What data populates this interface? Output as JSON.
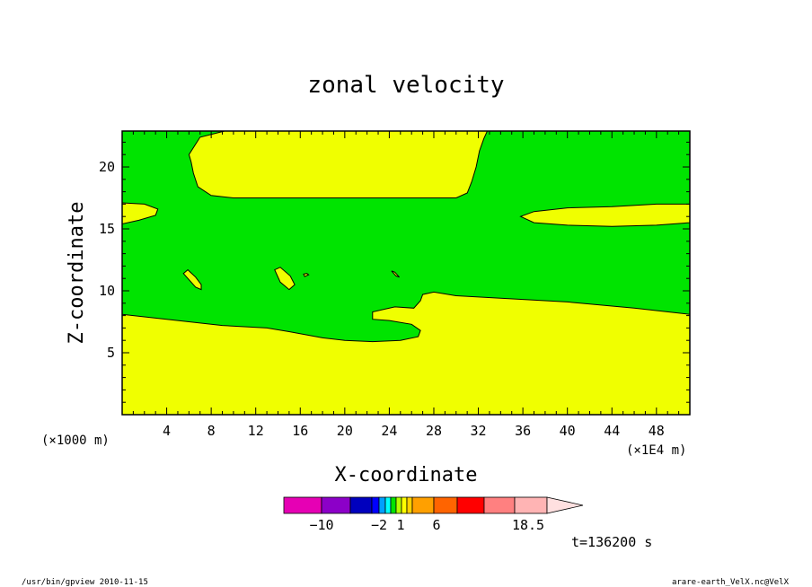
{
  "chart_data": {
    "type": "heatmap",
    "title": "zonal velocity",
    "xlabel": "X-coordinate",
    "ylabel": "Z-coordinate",
    "x_unit_left": "(×1000 m)",
    "x_unit_right": "(×1E4 m)",
    "xlim": [
      0,
      51
    ],
    "ylim": [
      0,
      22.9
    ],
    "x_ticks": [
      4,
      8,
      12,
      16,
      20,
      24,
      28,
      32,
      36,
      40,
      44,
      48
    ],
    "y_ticks": [
      5,
      10,
      15,
      20
    ],
    "fill_colors": {
      "background": "#00e400",
      "region": "#f0ff00"
    },
    "regions": [
      {
        "name": "bottom-layer",
        "points": [
          [
            0,
            0
          ],
          [
            0,
            8.1
          ],
          [
            4,
            7.7
          ],
          [
            9,
            7.2
          ],
          [
            13,
            7
          ],
          [
            15,
            6.7
          ],
          [
            18,
            6.2
          ],
          [
            20,
            6
          ],
          [
            22.5,
            5.9
          ],
          [
            25,
            6
          ],
          [
            26.6,
            6.3
          ],
          [
            26.8,
            6.8
          ],
          [
            26,
            7.3
          ],
          [
            24,
            7.6
          ],
          [
            22.5,
            7.7
          ],
          [
            22.5,
            8.3
          ],
          [
            24.5,
            8.7
          ],
          [
            26.2,
            8.6
          ],
          [
            26.8,
            9.2
          ],
          [
            27,
            9.7
          ],
          [
            28,
            9.9
          ],
          [
            30,
            9.6
          ],
          [
            34,
            9.4
          ],
          [
            40,
            9.1
          ],
          [
            46,
            8.6
          ],
          [
            51,
            8.1
          ],
          [
            51,
            0
          ]
        ]
      },
      {
        "name": "upper-block",
        "points": [
          [
            6,
            21
          ],
          [
            6.2,
            20.4
          ],
          [
            6.4,
            19.5
          ],
          [
            6.8,
            18.4
          ],
          [
            8,
            17.7
          ],
          [
            10,
            17.5
          ],
          [
            30,
            17.5
          ],
          [
            31,
            17.9
          ],
          [
            31.4,
            18.8
          ],
          [
            31.8,
            20
          ],
          [
            32.1,
            21.3
          ],
          [
            32.5,
            22.3
          ],
          [
            32.8,
            22.9
          ],
          [
            9.2,
            22.9
          ],
          [
            7,
            22.4
          ]
        ]
      },
      {
        "name": "left-lens",
        "points": [
          [
            0,
            15.4
          ],
          [
            1.5,
            15.7
          ],
          [
            3,
            16.1
          ],
          [
            3.2,
            16.6
          ],
          [
            2,
            17
          ],
          [
            0,
            17.1
          ]
        ]
      },
      {
        "name": "right-lens",
        "points": [
          [
            37,
            15.5
          ],
          [
            40,
            15.3
          ],
          [
            44,
            15.2
          ],
          [
            48,
            15.3
          ],
          [
            51,
            15.5
          ],
          [
            51,
            17
          ],
          [
            48,
            17
          ],
          [
            44,
            16.8
          ],
          [
            40,
            16.7
          ],
          [
            37,
            16.4
          ],
          [
            35.8,
            16
          ]
        ]
      },
      {
        "name": "blob-a",
        "points": [
          [
            5.5,
            11.4
          ],
          [
            5.9,
            11.7
          ],
          [
            6.6,
            11.1
          ],
          [
            7.1,
            10.5
          ],
          [
            7.1,
            10.1
          ],
          [
            6.6,
            10.3
          ]
        ]
      },
      {
        "name": "blob-b",
        "points": [
          [
            13.7,
            11.7
          ],
          [
            14.2,
            11.9
          ],
          [
            15.1,
            11.2
          ],
          [
            15.5,
            10.5
          ],
          [
            15,
            10.1
          ],
          [
            14.2,
            10.7
          ]
        ]
      },
      {
        "name": "blob-c",
        "points": [
          [
            16.3,
            11.35
          ],
          [
            16.6,
            11.4
          ],
          [
            16.75,
            11.3
          ],
          [
            16.4,
            11.15
          ]
        ]
      },
      {
        "name": "blob-d",
        "points": [
          [
            24.2,
            11.6
          ],
          [
            24.5,
            11.5
          ],
          [
            24.9,
            11.1
          ],
          [
            24.6,
            11.2
          ]
        ]
      }
    ],
    "colorbar": {
      "colors": [
        "#e600b4",
        "#8c00c8",
        "#0000be",
        "#0000ff",
        "#00a0ff",
        "#00ffff",
        "#00e400",
        "#b4ff00",
        "#ffff00",
        "#ffd200",
        "#ffa000",
        "#ff6400",
        "#ff0000",
        "#ff8080",
        "#ffb4b4",
        "#ffe0e0"
      ],
      "labels": [
        "−10",
        "−2",
        "1",
        "6",
        "18.5"
      ]
    }
  },
  "annotations": {
    "time": "t=136200 s",
    "footer_left": "/usr/bin/gpview  2010-11-15",
    "footer_right": "arare-earth_VelX.nc@VelX"
  }
}
